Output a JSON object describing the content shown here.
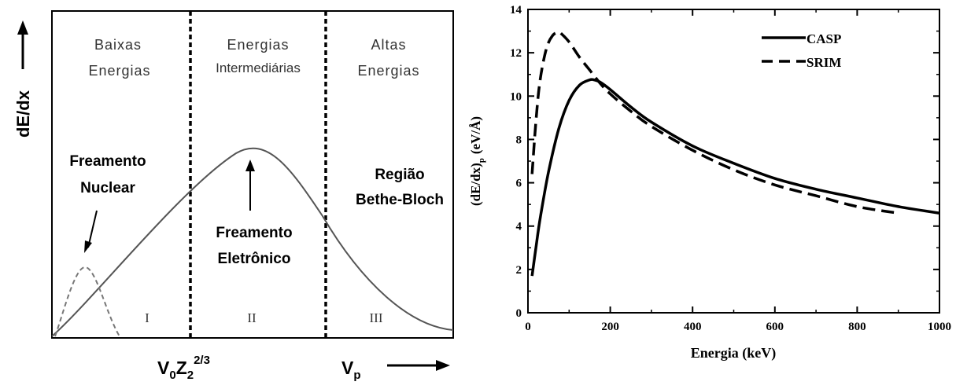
{
  "chart_data": [
    {
      "type": "line",
      "ylabel": "dE/dx",
      "xlabel_main": "V",
      "xlabel_sub": "0",
      "xlabel_main2": "Z",
      "xlabel_sub2": "2",
      "xlabel_sup": "2/3",
      "vp_main": "V",
      "vp_sub": "p",
      "regions": [
        {
          "line1": "Baixas",
          "line2": "Energias",
          "roman": "I"
        },
        {
          "line1": "Energias",
          "line2": "Intermediárias",
          "roman": "II"
        },
        {
          "line1": "Altas",
          "line2": "Energias",
          "roman": "III"
        }
      ],
      "annotations": {
        "nuclear_line1": "Freamento",
        "nuclear_line2": "Nuclear",
        "electronic_line1": "Freamento",
        "electronic_line2": "Eletrônico",
        "bethe_line1": "Região",
        "bethe_line2": "Bethe-Bloch"
      }
    },
    {
      "type": "line",
      "xlabel": "Energia (keV)",
      "ylabel_main": "(dE/dx)",
      "ylabel_sub": "p",
      "ylabel_unit": "(eV/Å)",
      "xlim": [
        0,
        1000
      ],
      "ylim": [
        0,
        14
      ],
      "xticks": [
        "0",
        "200",
        "400",
        "600",
        "800",
        "1000"
      ],
      "yticks": [
        "0",
        "2",
        "4",
        "6",
        "8",
        "10",
        "12",
        "14"
      ],
      "legend_position": "top-right",
      "series": [
        {
          "name": "CASP",
          "style": "solid",
          "x": [
            10,
            20,
            30,
            50,
            75,
            100,
            125,
            150,
            160,
            175,
            200,
            250,
            300,
            400,
            500,
            600,
            700,
            800,
            900,
            1000
          ],
          "y": [
            1.7,
            3.1,
            4.4,
            6.5,
            8.5,
            9.8,
            10.5,
            10.75,
            10.75,
            10.65,
            10.3,
            9.5,
            8.8,
            7.7,
            6.9,
            6.2,
            5.7,
            5.3,
            4.9,
            4.6
          ]
        },
        {
          "name": "SRIM",
          "style": "dashed",
          "x": [
            10,
            20,
            30,
            45,
            60,
            75,
            80,
            100,
            125,
            150,
            175,
            200,
            250,
            300,
            400,
            500,
            600,
            700,
            800,
            900
          ],
          "y": [
            6.4,
            9.0,
            10.8,
            12.2,
            12.8,
            12.95,
            12.9,
            12.5,
            11.8,
            11.2,
            10.6,
            10.1,
            9.3,
            8.6,
            7.5,
            6.6,
            5.9,
            5.4,
            4.9,
            4.6
          ]
        }
      ]
    }
  ]
}
